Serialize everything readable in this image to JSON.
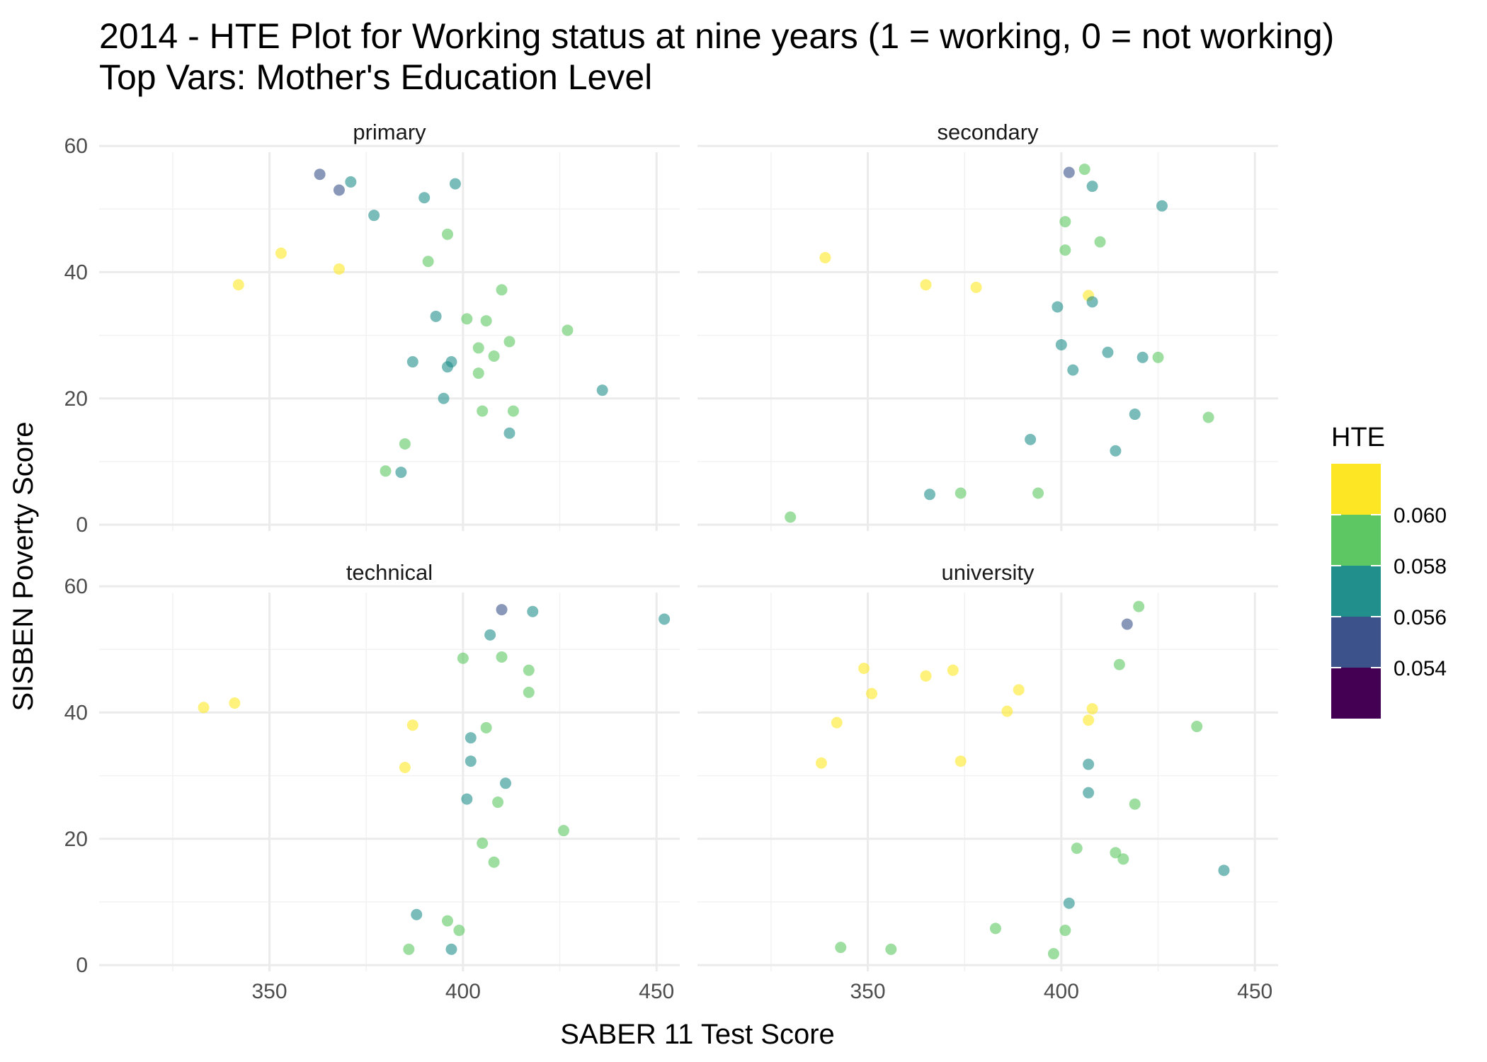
{
  "chart_data": {
    "type": "scatter",
    "title": "2014 - HTE Plot for Working status at nine years (1 = working, 0 = not working)",
    "subtitle": "Top Vars: Mother's Education Level",
    "xlabel": "SABER 11 Test Score",
    "ylabel": "SISBEN Poverty Score",
    "xlim": [
      306,
      456
    ],
    "ylim": [
      -1,
      59
    ],
    "x_ticks": [
      350,
      400,
      450
    ],
    "y_ticks": [
      0,
      20,
      40,
      60
    ],
    "grid": true,
    "facet_variable": "Mother's Education Level",
    "facets": [
      {
        "label": "primary",
        "points": [
          {
            "x": 427,
            "y": 30.8,
            "hte": 0.059
          },
          {
            "x": 410,
            "y": 37.2,
            "hte": 0.059
          },
          {
            "x": 412,
            "y": 29.0,
            "hte": 0.059
          },
          {
            "x": 401,
            "y": 32.6,
            "hte": 0.059
          },
          {
            "x": 406,
            "y": 32.3,
            "hte": 0.059
          },
          {
            "x": 404,
            "y": 28.0,
            "hte": 0.059
          },
          {
            "x": 408,
            "y": 26.7,
            "hte": 0.059
          },
          {
            "x": 404,
            "y": 24.0,
            "hte": 0.059
          },
          {
            "x": 398,
            "y": 54.0,
            "hte": 0.057
          },
          {
            "x": 396,
            "y": 46.0,
            "hte": 0.059
          },
          {
            "x": 391,
            "y": 41.7,
            "hte": 0.059
          },
          {
            "x": 393,
            "y": 33.0,
            "hte": 0.057
          },
          {
            "x": 397,
            "y": 25.8,
            "hte": 0.057
          },
          {
            "x": 396,
            "y": 25.0,
            "hte": 0.057
          },
          {
            "x": 395,
            "y": 20.0,
            "hte": 0.057
          },
          {
            "x": 405,
            "y": 18.0,
            "hte": 0.059
          },
          {
            "x": 413,
            "y": 18.0,
            "hte": 0.059
          },
          {
            "x": 412,
            "y": 14.5,
            "hte": 0.057
          },
          {
            "x": 436,
            "y": 21.3,
            "hte": 0.057
          },
          {
            "x": 390,
            "y": 51.8,
            "hte": 0.057
          },
          {
            "x": 385,
            "y": 12.8,
            "hte": 0.059
          },
          {
            "x": 384,
            "y": 8.3,
            "hte": 0.057
          },
          {
            "x": 380,
            "y": 8.5,
            "hte": 0.059
          },
          {
            "x": 387,
            "y": 25.8,
            "hte": 0.057
          },
          {
            "x": 368,
            "y": 40.5,
            "hte": 0.061
          },
          {
            "x": 342,
            "y": 38.0,
            "hte": 0.061
          },
          {
            "x": 353,
            "y": 43.0,
            "hte": 0.061
          },
          {
            "x": 363,
            "y": 55.5,
            "hte": 0.055
          },
          {
            "x": 368,
            "y": 53.0,
            "hte": 0.055
          },
          {
            "x": 371,
            "y": 54.3,
            "hte": 0.057
          },
          {
            "x": 377,
            "y": 49.0,
            "hte": 0.057
          }
        ]
      },
      {
        "label": "secondary",
        "points": [
          {
            "x": 438,
            "y": 17.0,
            "hte": 0.059
          },
          {
            "x": 426,
            "y": 50.5,
            "hte": 0.057
          },
          {
            "x": 425,
            "y": 26.5,
            "hte": 0.059
          },
          {
            "x": 421,
            "y": 26.5,
            "hte": 0.057
          },
          {
            "x": 419,
            "y": 17.5,
            "hte": 0.057
          },
          {
            "x": 414,
            "y": 11.7,
            "hte": 0.057
          },
          {
            "x": 412,
            "y": 27.3,
            "hte": 0.057
          },
          {
            "x": 410,
            "y": 44.8,
            "hte": 0.059
          },
          {
            "x": 408,
            "y": 53.6,
            "hte": 0.057
          },
          {
            "x": 406,
            "y": 56.3,
            "hte": 0.059
          },
          {
            "x": 407,
            "y": 36.3,
            "hte": 0.061
          },
          {
            "x": 408,
            "y": 35.3,
            "hte": 0.057
          },
          {
            "x": 402,
            "y": 55.8,
            "hte": 0.055
          },
          {
            "x": 401,
            "y": 48.0,
            "hte": 0.059
          },
          {
            "x": 401,
            "y": 43.5,
            "hte": 0.059
          },
          {
            "x": 399,
            "y": 34.5,
            "hte": 0.057
          },
          {
            "x": 403,
            "y": 24.5,
            "hte": 0.057
          },
          {
            "x": 400,
            "y": 28.5,
            "hte": 0.057
          },
          {
            "x": 394,
            "y": 5.0,
            "hte": 0.059
          },
          {
            "x": 392,
            "y": 13.5,
            "hte": 0.057
          },
          {
            "x": 365,
            "y": 38.0,
            "hte": 0.061
          },
          {
            "x": 378,
            "y": 37.6,
            "hte": 0.061
          },
          {
            "x": 339,
            "y": 42.3,
            "hte": 0.061
          },
          {
            "x": 366,
            "y": 4.8,
            "hte": 0.057
          },
          {
            "x": 374,
            "y": 5.0,
            "hte": 0.059
          },
          {
            "x": 330,
            "y": 1.2,
            "hte": 0.059
          }
        ]
      },
      {
        "label": "technical",
        "points": [
          {
            "x": 452,
            "y": 54.8,
            "hte": 0.057
          },
          {
            "x": 426,
            "y": 21.3,
            "hte": 0.059
          },
          {
            "x": 418,
            "y": 56.0,
            "hte": 0.057
          },
          {
            "x": 417,
            "y": 46.7,
            "hte": 0.059
          },
          {
            "x": 417,
            "y": 43.2,
            "hte": 0.059
          },
          {
            "x": 410,
            "y": 56.3,
            "hte": 0.055
          },
          {
            "x": 407,
            "y": 52.3,
            "hte": 0.057
          },
          {
            "x": 410,
            "y": 48.8,
            "hte": 0.059
          },
          {
            "x": 411,
            "y": 28.8,
            "hte": 0.057
          },
          {
            "x": 409,
            "y": 25.8,
            "hte": 0.059
          },
          {
            "x": 405,
            "y": 19.3,
            "hte": 0.059
          },
          {
            "x": 408,
            "y": 16.3,
            "hte": 0.059
          },
          {
            "x": 406,
            "y": 37.6,
            "hte": 0.059
          },
          {
            "x": 402,
            "y": 36.0,
            "hte": 0.057
          },
          {
            "x": 402,
            "y": 32.3,
            "hte": 0.057
          },
          {
            "x": 401,
            "y": 26.3,
            "hte": 0.057
          },
          {
            "x": 400,
            "y": 48.6,
            "hte": 0.059
          },
          {
            "x": 399,
            "y": 5.5,
            "hte": 0.059
          },
          {
            "x": 397,
            "y": 2.5,
            "hte": 0.057
          },
          {
            "x": 396,
            "y": 7.0,
            "hte": 0.059
          },
          {
            "x": 387,
            "y": 38.0,
            "hte": 0.061
          },
          {
            "x": 385,
            "y": 31.3,
            "hte": 0.061
          },
          {
            "x": 333,
            "y": 40.8,
            "hte": 0.061
          },
          {
            "x": 341,
            "y": 41.5,
            "hte": 0.061
          },
          {
            "x": 386,
            "y": 2.5,
            "hte": 0.059
          },
          {
            "x": 388,
            "y": 8.0,
            "hte": 0.057
          }
        ]
      },
      {
        "label": "university",
        "points": [
          {
            "x": 442,
            "y": 15.0,
            "hte": 0.057
          },
          {
            "x": 435,
            "y": 37.8,
            "hte": 0.059
          },
          {
            "x": 420,
            "y": 56.8,
            "hte": 0.059
          },
          {
            "x": 419,
            "y": 25.5,
            "hte": 0.059
          },
          {
            "x": 417,
            "y": 54.0,
            "hte": 0.055
          },
          {
            "x": 414,
            "y": 17.8,
            "hte": 0.059
          },
          {
            "x": 416,
            "y": 16.8,
            "hte": 0.059
          },
          {
            "x": 415,
            "y": 47.6,
            "hte": 0.059
          },
          {
            "x": 408,
            "y": 40.6,
            "hte": 0.061
          },
          {
            "x": 407,
            "y": 38.8,
            "hte": 0.061
          },
          {
            "x": 407,
            "y": 31.8,
            "hte": 0.057
          },
          {
            "x": 407,
            "y": 27.3,
            "hte": 0.057
          },
          {
            "x": 404,
            "y": 18.5,
            "hte": 0.059
          },
          {
            "x": 402,
            "y": 9.8,
            "hte": 0.057
          },
          {
            "x": 401,
            "y": 5.5,
            "hte": 0.059
          },
          {
            "x": 398,
            "y": 1.8,
            "hte": 0.059
          },
          {
            "x": 389,
            "y": 43.6,
            "hte": 0.061
          },
          {
            "x": 386,
            "y": 40.2,
            "hte": 0.061
          },
          {
            "x": 372,
            "y": 46.7,
            "hte": 0.061
          },
          {
            "x": 365,
            "y": 45.8,
            "hte": 0.061
          },
          {
            "x": 351,
            "y": 43.0,
            "hte": 0.061
          },
          {
            "x": 342,
            "y": 38.4,
            "hte": 0.061
          },
          {
            "x": 338,
            "y": 32.0,
            "hte": 0.061
          },
          {
            "x": 349,
            "y": 47.0,
            "hte": 0.061
          },
          {
            "x": 374,
            "y": 32.3,
            "hte": 0.061
          },
          {
            "x": 383,
            "y": 5.8,
            "hte": 0.059
          },
          {
            "x": 343,
            "y": 2.8,
            "hte": 0.059
          },
          {
            "x": 356,
            "y": 2.5,
            "hte": 0.059
          }
        ]
      }
    ],
    "legend": {
      "title": "HTE",
      "position": "right",
      "breaks": [
        "0.060",
        "0.058",
        "0.056",
        "0.054"
      ],
      "bins": [
        {
          "lower": 0.053,
          "upper": 0.054,
          "color": "#440154"
        },
        {
          "lower": 0.054,
          "upper": 0.056,
          "color": "#3B528B"
        },
        {
          "lower": 0.056,
          "upper": 0.058,
          "color": "#21908C"
        },
        {
          "lower": 0.058,
          "upper": 0.06,
          "color": "#5DC863"
        },
        {
          "lower": 0.06,
          "upper": 0.062,
          "color": "#FDE725"
        }
      ]
    }
  }
}
